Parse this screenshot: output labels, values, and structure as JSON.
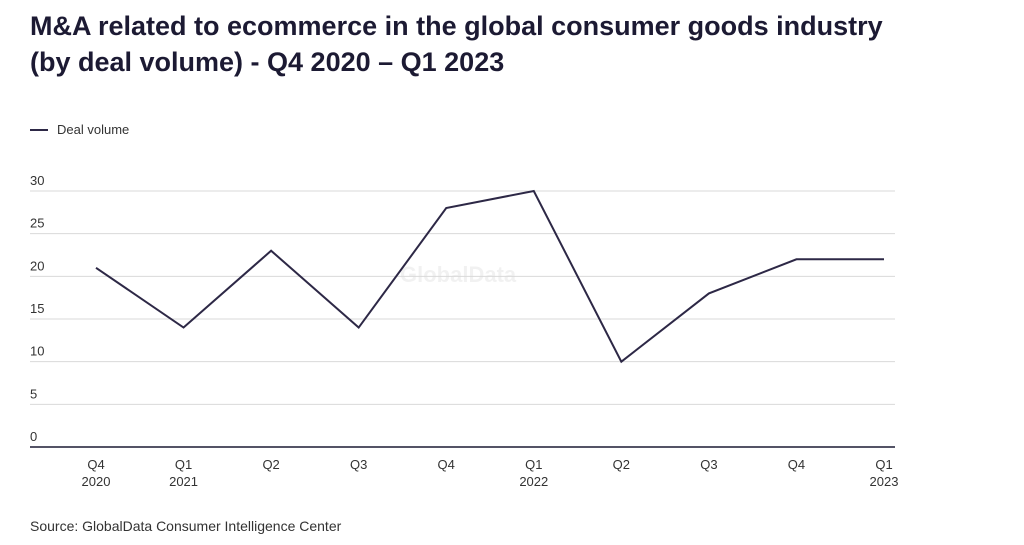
{
  "header": {
    "title_line1": "M&A related to ecommerce in the global consumer goods industry",
    "title_line2": "(by deal volume) - Q4 2020 – Q1 2023"
  },
  "watermark": "GlobalData",
  "source": "Source: GlobalData Consumer Intelligence Center",
  "colors": {
    "line": "#2d2846",
    "grid": "#d9d9d9",
    "axis": "#1c1a33"
  },
  "chart_data": {
    "type": "line",
    "categories": [
      [
        "Q4",
        "2020"
      ],
      [
        "Q1",
        "2021"
      ],
      [
        "Q2",
        ""
      ],
      [
        "Q3",
        ""
      ],
      [
        "Q4",
        ""
      ],
      [
        "Q1",
        "2022"
      ],
      [
        "Q2",
        ""
      ],
      [
        "Q3",
        ""
      ],
      [
        "Q4",
        ""
      ],
      [
        "Q1",
        "2023"
      ]
    ],
    "series": [
      {
        "name": "Deal volume",
        "values": [
          21,
          14,
          23,
          14,
          28,
          30,
          10,
          18,
          22,
          22
        ]
      }
    ],
    "ylim": [
      0,
      30
    ],
    "yticks": [
      0,
      5,
      10,
      15,
      20,
      25,
      30
    ],
    "grid": true,
    "legend": "top-left"
  }
}
